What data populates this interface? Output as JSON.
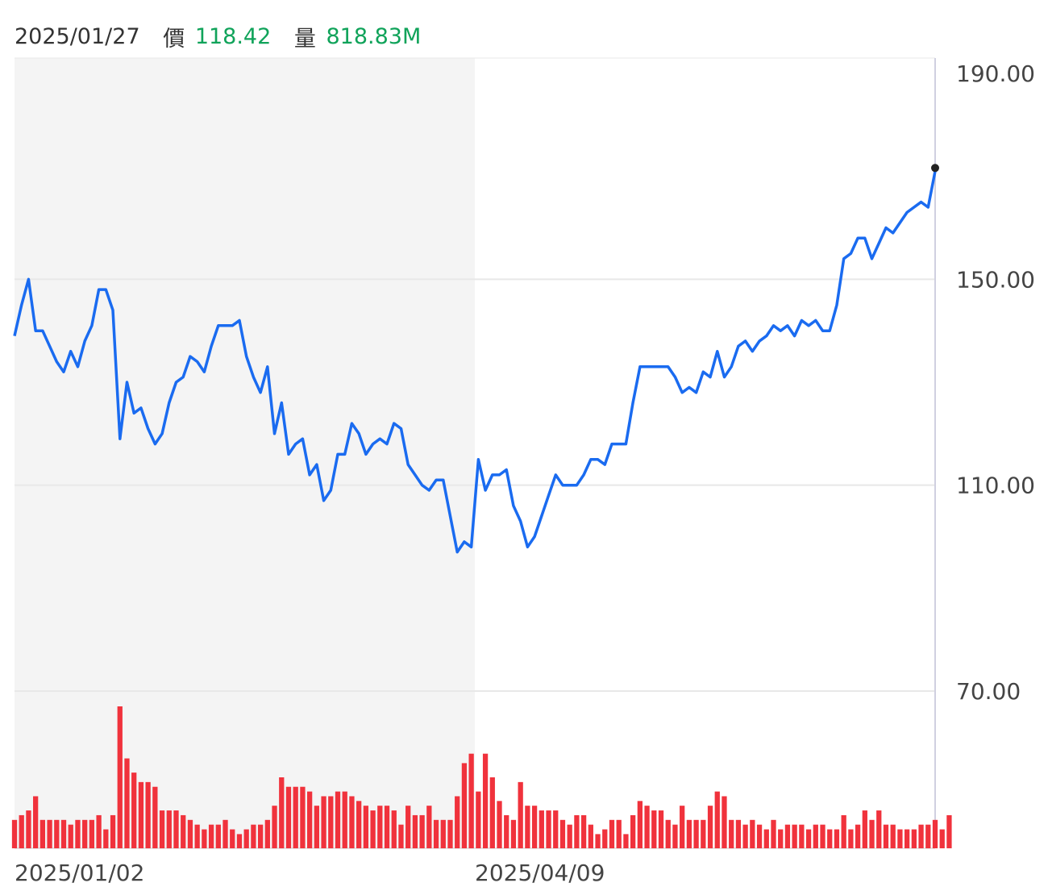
{
  "header": {
    "date": "2025/01/27",
    "price_label": "價",
    "price_value": "118.42",
    "volume_label": "量",
    "volume_value": "818.83M"
  },
  "colors": {
    "line": "#1a6bf0",
    "volume_bar": "#f0323c",
    "highlight_band": "#f4f4f4",
    "gridline": "#e8e8e8",
    "axis_line": "#d0d0e0",
    "header_value": "#10a35a",
    "end_dot": "#222222"
  },
  "chart_data": {
    "type": "line",
    "title": "",
    "xlabel": "",
    "ylabel": "",
    "ylim": [
      70,
      190
    ],
    "y_ticks": [
      "190.00",
      "150.00",
      "110.00",
      "70.00"
    ],
    "x_tick_labels": [
      "2025/01/02",
      "2025/04/09"
    ],
    "gridlines": true,
    "highlighted_range": "2024/12 – 2025/04/09",
    "series": [
      {
        "values": [
          139,
          145,
          150,
          140,
          140,
          137,
          134,
          132,
          136,
          133,
          138,
          141,
          148,
          148,
          144,
          119,
          130,
          124,
          125,
          121,
          118,
          120,
          126,
          130,
          131,
          135,
          134,
          132,
          137,
          141,
          141,
          141,
          142,
          135,
          131,
          128,
          133,
          120,
          126,
          116,
          118,
          119,
          112,
          114,
          107,
          109,
          116,
          116,
          122,
          120,
          116,
          118,
          119,
          118,
          122,
          121,
          114,
          112,
          110,
          109,
          111,
          111,
          104,
          97,
          99,
          98,
          115,
          109,
          112,
          112,
          113,
          106,
          103,
          98,
          100,
          104,
          108,
          112,
          110,
          110,
          110,
          112,
          115,
          115,
          114,
          118,
          118,
          118,
          126,
          133,
          133,
          133,
          133,
          133,
          131,
          128,
          129,
          128,
          132,
          131,
          136,
          131,
          133,
          137,
          138,
          136,
          138,
          139,
          141,
          140,
          141,
          139,
          142,
          141,
          142,
          140,
          140,
          145,
          154,
          155,
          158,
          158,
          154,
          157,
          160,
          159,
          161,
          163,
          164,
          165,
          164,
          171
        ]
      },
      {
        "name": "量",
        "values": [
          6,
          7,
          8,
          11,
          6,
          6,
          6,
          6,
          5,
          6,
          6,
          6,
          7,
          4,
          7,
          30,
          19,
          16,
          14,
          14,
          13,
          8,
          8,
          8,
          7,
          6,
          5,
          4,
          5,
          5,
          6,
          4,
          3,
          4,
          5,
          5,
          6,
          9,
          15,
          13,
          13,
          13,
          12,
          9,
          11,
          11,
          12,
          12,
          11,
          10,
          9,
          8,
          9,
          9,
          8,
          5,
          9,
          7,
          7,
          9,
          6,
          6,
          6,
          11,
          18,
          20,
          12,
          20,
          15,
          10,
          7,
          6,
          14,
          9,
          9,
          8,
          8,
          8,
          6,
          5,
          7,
          7,
          5,
          3,
          4,
          6,
          6,
          3,
          7,
          10,
          9,
          8,
          8,
          6,
          5,
          9,
          6,
          6,
          6,
          9,
          12,
          11,
          6,
          6,
          5,
          6,
          5,
          4,
          6,
          4,
          5,
          5,
          5,
          4,
          5,
          5,
          4,
          4,
          7,
          4,
          5,
          8,
          6,
          8,
          5,
          5,
          4,
          4,
          4,
          5,
          5,
          6,
          4,
          7
        ]
      }
    ]
  }
}
